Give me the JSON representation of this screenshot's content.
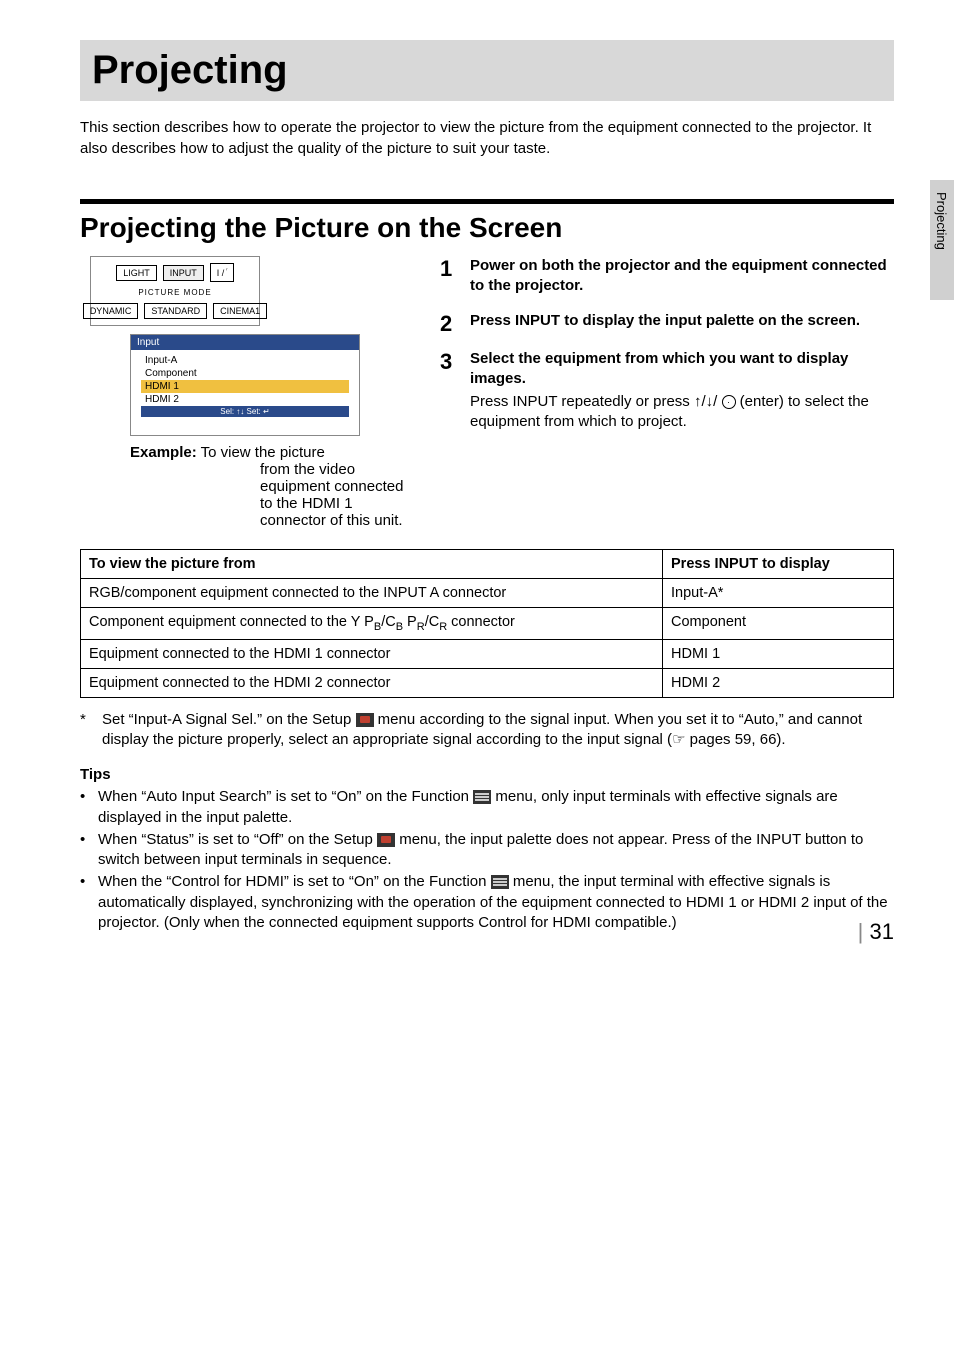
{
  "side_tab": "Projecting",
  "title": "Projecting",
  "intro": "This section describes how to operate the projector to view the picture from the equipment connected to the projector. It also describes how to adjust the quality of the picture to suit your taste.",
  "section_heading": "Projecting the Picture on the Screen",
  "remote": {
    "btns_top": [
      "LIGHT",
      "INPUT",
      "I / ⷢ"
    ],
    "mode_label": "PICTURE MODE",
    "modes": [
      "DYNAMIC",
      "STANDARD",
      "CINEMA1"
    ]
  },
  "osd": {
    "title": "Input",
    "items": [
      "Input-A",
      "Component",
      "HDMI 1",
      "HDMI 2"
    ],
    "selected_index": 2,
    "foot": "Sel: ↑↓  Set: ↵"
  },
  "example": {
    "label": "Example:",
    "text": "To view the picture from the video equipment connected to the HDMI 1 connector of this unit."
  },
  "steps": [
    {
      "num": "1",
      "head": "Power on both the projector and the equipment connected to the projector."
    },
    {
      "num": "2",
      "head": "Press INPUT to display the input palette on the screen."
    },
    {
      "num": "3",
      "head": "Select the equipment from which you want to display images.",
      "text_a": "Press INPUT repeatedly or press ",
      "text_b": " (enter) to select the equipment from which to project."
    }
  ],
  "table": {
    "head": [
      "To view the picture from",
      "Press INPUT to display"
    ],
    "rows": [
      [
        "RGB/component equipment connected to the INPUT A connector",
        "Input-A*"
      ],
      [
        "__COMPONENT_ROW__",
        "Component"
      ],
      [
        "Equipment connected to the HDMI 1 connector",
        "HDMI 1"
      ],
      [
        "Equipment connected to the HDMI 2 connector",
        "HDMI 2"
      ]
    ],
    "component_text_a": "Component equipment connected to the Y P",
    "component_text_b": "/C",
    "component_text_c": " P",
    "component_text_d": "/C",
    "component_text_e": " connector",
    "sub_b": "B",
    "sub_r": "R"
  },
  "footnote": {
    "star": "*",
    "text_a": "Set “Input-A Signal Sel.” on the Setup ",
    "text_b": " menu according to the signal input. When you set it to “Auto,” and cannot display the picture properly, select an appropriate signal according to the input signal (",
    "hand": "☞",
    "text_c": " pages 59,  66)."
  },
  "tips_head": "Tips",
  "tips": [
    {
      "a": "When “Auto Input Search” is set to “On” on the Function ",
      "icon": "func",
      "b": " menu, only input terminals with effective signals are displayed in the input palette."
    },
    {
      "a": "When “Status” is set to “Off” on the Setup ",
      "icon": "setup",
      "b": " menu, the input palette does not appear. Press of the INPUT button to switch between input terminals in sequence."
    },
    {
      "a": "When the “Control for HDMI” is set to “On” on the Function ",
      "icon": "func",
      "b": " menu, the input terminal with effective signals is automatically displayed, synchronizing with the operation of the equipment connected to HDMI 1 or HDMI 2 input of the projector. (Only when the connected equipment supports Control for HDMI compatible.)"
    }
  ],
  "page_number": "31",
  "colors": {
    "band_bg": "#d8d8d8",
    "tab_bg": "#d0d0d0",
    "osd_blue": "#2a4a8a",
    "osd_yellow": "#f0c040",
    "setup_icon": "#c04030"
  }
}
